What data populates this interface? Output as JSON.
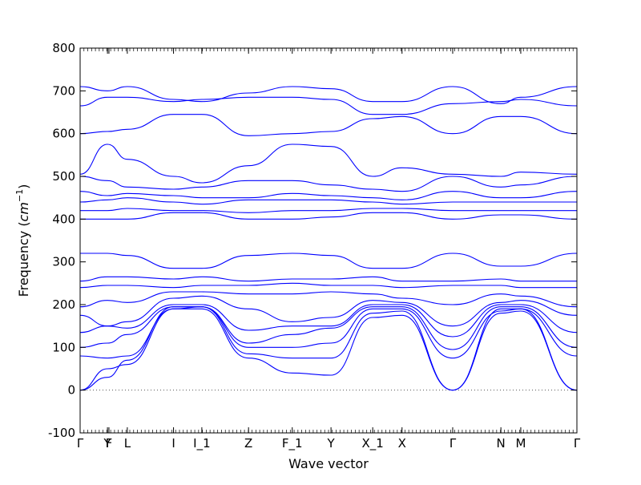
{
  "chart_data": {
    "type": "line",
    "title": "",
    "xlabel": "Wave vector",
    "ylabel": "Frequency",
    "ylabel_unit": "cm",
    "ylabel_unit_exp": "−1",
    "ylim": [
      -100,
      800
    ],
    "yticks": [
      -100,
      0,
      100,
      200,
      300,
      400,
      500,
      600,
      700,
      800
    ],
    "grid": false,
    "legend": "none",
    "colors": {
      "bands": "#0000ff",
      "zero_line": "#555555"
    },
    "kpath": [
      {
        "label": "Γ",
        "pos": 0.0
      },
      {
        "label": "Y",
        "pos": 0.055
      },
      {
        "label": "F",
        "pos": 0.058
      },
      {
        "label": "L",
        "pos": 0.095
      },
      {
        "label": "I",
        "pos": 0.188
      },
      {
        "label": "I_1",
        "pos": 0.245
      },
      {
        "label": "Z",
        "pos": 0.339
      },
      {
        "label": "F_1",
        "pos": 0.427
      },
      {
        "label": "Y",
        "pos": 0.505
      },
      {
        "label": "X_1",
        "pos": 0.589
      },
      {
        "label": "X",
        "pos": 0.648
      },
      {
        "label": "Γ",
        "pos": 0.75
      },
      {
        "label": "N",
        "pos": 0.847
      },
      {
        "label": "M",
        "pos": 0.887
      },
      {
        "label": "Γ",
        "pos": 1.0
      }
    ],
    "series": [
      {
        "x": [
          0,
          0.055,
          0.095,
          0.188,
          0.245,
          0.339,
          0.427,
          0.505,
          0.589,
          0.648,
          0.75,
          0.847,
          0.887,
          1
        ],
        "values": [
          0,
          50,
          60,
          190,
          190,
          75,
          40,
          35,
          170,
          175,
          0,
          180,
          185,
          0
        ]
      },
      {
        "x": [
          0,
          0.055,
          0.095,
          0.188,
          0.245,
          0.339,
          0.427,
          0.505,
          0.589,
          0.648,
          0.75,
          0.847,
          0.887,
          1
        ],
        "values": [
          0,
          30,
          70,
          195,
          195,
          85,
          75,
          75,
          180,
          185,
          0,
          190,
          190,
          0
        ]
      },
      {
        "x": [
          0,
          0.055,
          0.095,
          0.188,
          0.245,
          0.339,
          0.427,
          0.505,
          0.589,
          0.648,
          0.75,
          0.847,
          0.887,
          1
        ],
        "values": [
          80,
          75,
          80,
          190,
          195,
          100,
          100,
          110,
          190,
          190,
          75,
          185,
          190,
          80
        ]
      },
      {
        "x": [
          0,
          0.055,
          0.095,
          0.188,
          0.245,
          0.339,
          0.427,
          0.505,
          0.589,
          0.648,
          0.75,
          0.847,
          0.887,
          1
        ],
        "values": [
          100,
          110,
          130,
          195,
          195,
          110,
          130,
          145,
          195,
          195,
          95,
          195,
          195,
          100
        ]
      },
      {
        "x": [
          0,
          0.055,
          0.095,
          0.188,
          0.245,
          0.339,
          0.427,
          0.505,
          0.589,
          0.648,
          0.75,
          0.847,
          0.887,
          1
        ],
        "values": [
          135,
          150,
          145,
          200,
          200,
          140,
          150,
          150,
          200,
          200,
          125,
          200,
          200,
          135
        ]
      },
      {
        "x": [
          0,
          0.055,
          0.095,
          0.188,
          0.245,
          0.339,
          0.427,
          0.505,
          0.589,
          0.648,
          0.75,
          0.847,
          0.887,
          1
        ],
        "values": [
          175,
          150,
          160,
          215,
          220,
          190,
          160,
          170,
          210,
          205,
          150,
          205,
          210,
          175
        ]
      },
      {
        "x": [
          0,
          0.055,
          0.095,
          0.188,
          0.245,
          0.339,
          0.427,
          0.505,
          0.589,
          0.648,
          0.75,
          0.847,
          0.887,
          1
        ],
        "values": [
          195,
          210,
          205,
          230,
          230,
          225,
          225,
          230,
          225,
          215,
          200,
          225,
          220,
          195
        ]
      },
      {
        "x": [
          0,
          0.055,
          0.095,
          0.188,
          0.245,
          0.339,
          0.427,
          0.505,
          0.589,
          0.648,
          0.75,
          0.847,
          0.887,
          1
        ],
        "values": [
          240,
          245,
          245,
          240,
          245,
          245,
          250,
          245,
          245,
          240,
          245,
          245,
          240,
          240
        ]
      },
      {
        "x": [
          0,
          0.055,
          0.095,
          0.188,
          0.245,
          0.339,
          0.427,
          0.505,
          0.589,
          0.648,
          0.75,
          0.847,
          0.887,
          1
        ],
        "values": [
          255,
          265,
          265,
          260,
          265,
          255,
          260,
          260,
          265,
          255,
          255,
          260,
          255,
          255
        ]
      },
      {
        "x": [
          0,
          0.055,
          0.095,
          0.188,
          0.245,
          0.339,
          0.427,
          0.505,
          0.589,
          0.648,
          0.75,
          0.847,
          0.887,
          1
        ],
        "values": [
          320,
          320,
          315,
          285,
          285,
          315,
          320,
          315,
          285,
          285,
          320,
          290,
          290,
          320
        ]
      },
      {
        "x": [
          0,
          0.055,
          0.095,
          0.188,
          0.245,
          0.339,
          0.427,
          0.505,
          0.589,
          0.648,
          0.75,
          0.847,
          0.887,
          1
        ],
        "values": [
          400,
          400,
          400,
          415,
          415,
          400,
          400,
          405,
          415,
          415,
          400,
          410,
          410,
          400
        ]
      },
      {
        "x": [
          0,
          0.055,
          0.095,
          0.188,
          0.245,
          0.339,
          0.427,
          0.505,
          0.589,
          0.648,
          0.75,
          0.847,
          0.887,
          1
        ],
        "values": [
          420,
          420,
          425,
          420,
          420,
          415,
          420,
          420,
          425,
          425,
          420,
          420,
          420,
          420
        ]
      },
      {
        "x": [
          0,
          0.055,
          0.095,
          0.188,
          0.245,
          0.339,
          0.427,
          0.505,
          0.589,
          0.648,
          0.75,
          0.847,
          0.887,
          1
        ],
        "values": [
          440,
          445,
          450,
          440,
          435,
          445,
          445,
          445,
          440,
          435,
          440,
          440,
          440,
          440
        ]
      },
      {
        "x": [
          0,
          0.055,
          0.095,
          0.188,
          0.245,
          0.339,
          0.427,
          0.505,
          0.589,
          0.648,
          0.75,
          0.847,
          0.887,
          1
        ],
        "values": [
          465,
          455,
          460,
          455,
          450,
          450,
          460,
          455,
          450,
          445,
          465,
          450,
          450,
          465
        ]
      },
      {
        "x": [
          0,
          0.055,
          0.095,
          0.188,
          0.245,
          0.339,
          0.427,
          0.505,
          0.589,
          0.648,
          0.75,
          0.847,
          0.887,
          1
        ],
        "values": [
          500,
          490,
          475,
          470,
          475,
          490,
          490,
          480,
          470,
          465,
          500,
          475,
          480,
          500
        ]
      },
      {
        "x": [
          0,
          0.055,
          0.095,
          0.188,
          0.245,
          0.339,
          0.427,
          0.505,
          0.589,
          0.648,
          0.75,
          0.847,
          0.887,
          1
        ],
        "values": [
          505,
          575,
          540,
          500,
          485,
          525,
          575,
          570,
          500,
          520,
          505,
          500,
          510,
          505
        ]
      },
      {
        "x": [
          0,
          0.055,
          0.095,
          0.188,
          0.245,
          0.339,
          0.427,
          0.505,
          0.589,
          0.648,
          0.75,
          0.847,
          0.887,
          1
        ],
        "values": [
          600,
          605,
          610,
          645,
          645,
          595,
          600,
          605,
          635,
          640,
          600,
          640,
          640,
          600
        ]
      },
      {
        "x": [
          0,
          0.055,
          0.095,
          0.188,
          0.245,
          0.339,
          0.427,
          0.505,
          0.589,
          0.648,
          0.75,
          0.847,
          0.887,
          1
        ],
        "values": [
          665,
          685,
          685,
          675,
          680,
          685,
          685,
          680,
          645,
          645,
          670,
          675,
          680,
          665
        ]
      },
      {
        "x": [
          0,
          0.055,
          0.095,
          0.188,
          0.245,
          0.339,
          0.427,
          0.505,
          0.589,
          0.648,
          0.75,
          0.847,
          0.887,
          1
        ],
        "values": [
          710,
          700,
          710,
          680,
          675,
          695,
          710,
          705,
          675,
          675,
          710,
          670,
          685,
          710
        ]
      }
    ]
  }
}
